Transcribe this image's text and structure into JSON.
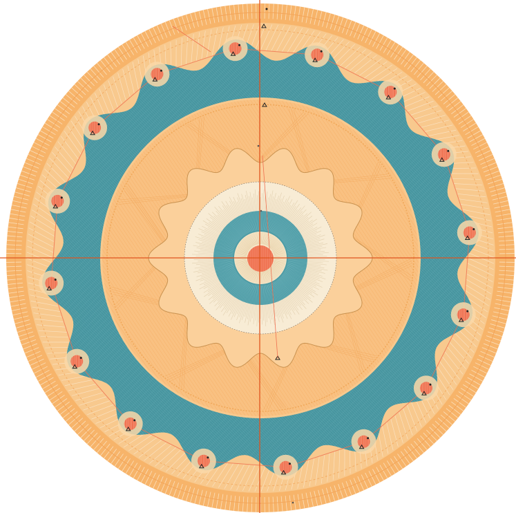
{
  "palette": {
    "orange_light": "#f7b46a",
    "orange_pale": "#fad3a3",
    "teal": "#4e9ca6",
    "cream": "#f8ecd5",
    "coral": "#ef7050",
    "axis_red": "#e0541f",
    "marker_dark": "#222222"
  },
  "ring_nodes": 16,
  "inner_bumps": 14
}
